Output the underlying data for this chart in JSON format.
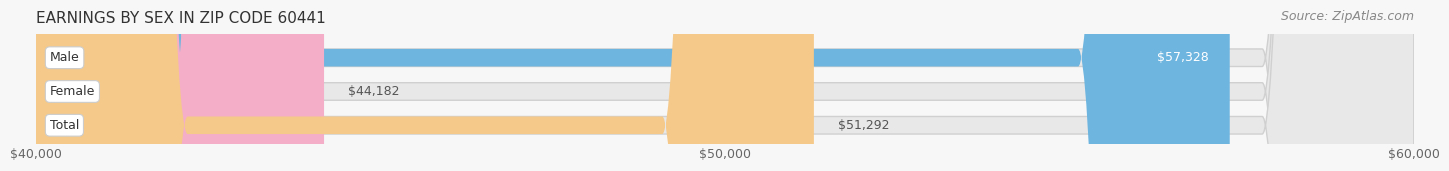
{
  "title": "EARNINGS BY SEX IN ZIP CODE 60441",
  "source": "Source: ZipAtlas.com",
  "categories": [
    "Male",
    "Female",
    "Total"
  ],
  "values": [
    57328,
    44182,
    51292
  ],
  "bar_colors": [
    "#6eb5e0",
    "#f4aec8",
    "#f5c98a"
  ],
  "bar_labels": [
    "$57,328",
    "$44,182",
    "$51,292"
  ],
  "label_inside": [
    true,
    false,
    false
  ],
  "xmin": 40000,
  "xmax": 60000,
  "xticks": [
    40000,
    50000,
    60000
  ],
  "xtick_labels": [
    "$40,000",
    "$50,000",
    "$60,000"
  ],
  "background_color": "#f7f7f7",
  "bar_bg_color": "#e8e8e8",
  "title_fontsize": 11,
  "source_fontsize": 9,
  "bar_label_fontsize": 9,
  "category_fontsize": 9,
  "tick_fontsize": 9
}
